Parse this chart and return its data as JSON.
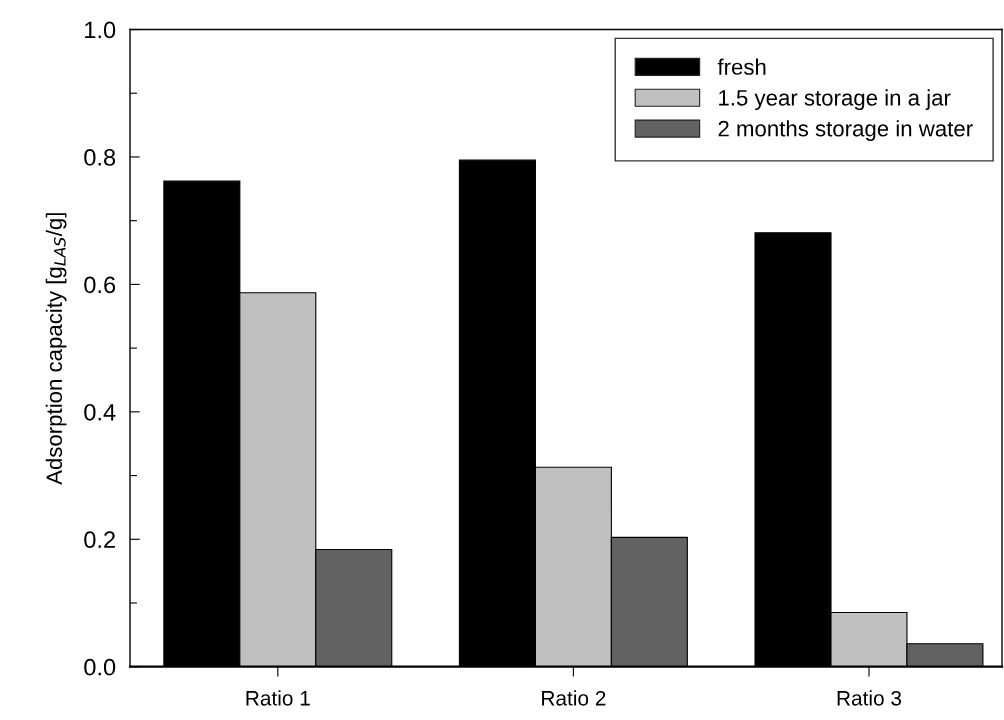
{
  "chart_data": {
    "type": "bar",
    "ylabel": "Adsorption capacity [g$_{LAS}$/g]",
    "categories": [
      "Ratio 1",
      "Ratio 2",
      "Ratio 3"
    ],
    "series": [
      {
        "name": "fresh",
        "color": "#000000",
        "values": [
          0.762,
          0.795,
          0.681
        ]
      },
      {
        "name": "1.5 year storage in a jar",
        "color": "#c0c0c0",
        "values": [
          0.587,
          0.313,
          0.085
        ]
      },
      {
        "name": "2 months storage in water",
        "color": "#626262",
        "values": [
          0.184,
          0.203,
          0.036
        ]
      }
    ],
    "ylim": [
      0,
      1.0
    ],
    "yticks": [
      {
        "value": 0,
        "label": "0.0"
      },
      {
        "value": 0.1,
        "label": null
      },
      {
        "value": 0.2,
        "label": "0.2"
      },
      {
        "value": 0.3,
        "label": null
      },
      {
        "value": 0.4,
        "label": "0.4"
      },
      {
        "value": 0.5,
        "label": null
      },
      {
        "value": 0.6,
        "label": "0.6"
      },
      {
        "value": 0.7,
        "label": null
      },
      {
        "value": 0.8,
        "label": "0.8"
      },
      {
        "value": 0.9,
        "label": null
      },
      {
        "value": 1.0,
        "label": "1.0"
      }
    ],
    "grid": false,
    "legend": "top right"
  }
}
